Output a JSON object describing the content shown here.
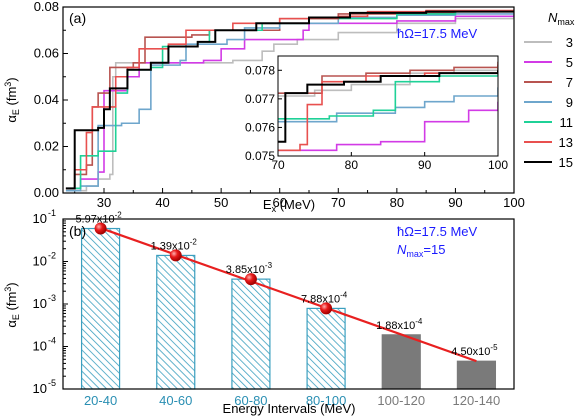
{
  "chart_data": [
    {
      "panel": "(a)",
      "type": "line",
      "xlabel": "E",
      "xlabel_sub": "x",
      "xlabel_unit": " (MeV)",
      "ylabel": "α",
      "ylabel_sub": "E",
      "ylabel_unit": " (fm",
      "ylabel_sup": "3",
      "ylabel_close": ")",
      "xlim": [
        23,
        100
      ],
      "ylim": [
        0,
        0.08
      ],
      "xticks": [
        "30",
        "40",
        "50",
        "60",
        "70",
        "80",
        "90",
        "100"
      ],
      "yticks": [
        "0.00",
        "0.02",
        "0.04",
        "0.06",
        "0.08"
      ],
      "annotation": "ħΩ=17.5 MeV",
      "legend_title": "N",
      "legend_title_sub": "max",
      "series": [
        {
          "name": "3",
          "color": "#bdbdbd",
          "points": [
            [
              23.5,
              0.001
            ],
            [
              27,
              0.003
            ],
            [
              29,
              0.006
            ],
            [
              31,
              0.008
            ],
            [
              31.5,
              0.05
            ],
            [
              32,
              0.056
            ],
            [
              52,
              0.057
            ],
            [
              57,
              0.061
            ],
            [
              59,
              0.064
            ],
            [
              63,
              0.066
            ],
            [
              70,
              0.069
            ],
            [
              80,
              0.073
            ],
            [
              90,
              0.075
            ],
            [
              100,
              0.077
            ]
          ]
        },
        {
          "name": "5",
          "color": "#d23be6",
          "points": [
            [
              23.5,
              0.002
            ],
            [
              26,
              0.006
            ],
            [
              29,
              0.009
            ],
            [
              30,
              0.011
            ],
            [
              30,
              0.044
            ],
            [
              34,
              0.05
            ],
            [
              36,
              0.056
            ],
            [
              47,
              0.057
            ],
            [
              50,
              0.062
            ],
            [
              54,
              0.066
            ],
            [
              64,
              0.07
            ],
            [
              65,
              0.073
            ],
            [
              80,
              0.074
            ],
            [
              90,
              0.076
            ],
            [
              100,
              0.0775
            ]
          ]
        },
        {
          "name": "7",
          "color": "#b85450",
          "points": [
            [
              23.5,
              0.002
            ],
            [
              25,
              0.008
            ],
            [
              27,
              0.012
            ],
            [
              28,
              0.037
            ],
            [
              29,
              0.043
            ],
            [
              31,
              0.054
            ],
            [
              35,
              0.056
            ],
            [
              37,
              0.067
            ],
            [
              45,
              0.068
            ],
            [
              48,
              0.07
            ],
            [
              60,
              0.075
            ],
            [
              70,
              0.077
            ],
            [
              80,
              0.0775
            ],
            [
              90,
              0.078
            ],
            [
              100,
              0.0785
            ]
          ]
        },
        {
          "name": "9",
          "color": "#6ea6cc",
          "points": [
            [
              23.5,
              0.001
            ],
            [
              26,
              0.003
            ],
            [
              29,
              0.029
            ],
            [
              33,
              0.03
            ],
            [
              36,
              0.036
            ],
            [
              38,
              0.055
            ],
            [
              43,
              0.057
            ],
            [
              44,
              0.064
            ],
            [
              51,
              0.066
            ],
            [
              54,
              0.071
            ],
            [
              60,
              0.073
            ],
            [
              70,
              0.0755
            ],
            [
              80,
              0.0765
            ],
            [
              90,
              0.077
            ],
            [
              100,
              0.0775
            ]
          ]
        },
        {
          "name": "11",
          "color": "#1fd197",
          "points": [
            [
              23.5,
              0.002
            ],
            [
              26,
              0.016
            ],
            [
              29,
              0.018
            ],
            [
              32,
              0.043
            ],
            [
              34,
              0.053
            ],
            [
              38,
              0.054
            ],
            [
              40,
              0.063
            ],
            [
              46,
              0.065
            ],
            [
              48,
              0.07
            ],
            [
              57,
              0.073
            ],
            [
              65,
              0.075
            ],
            [
              80,
              0.077
            ],
            [
              90,
              0.078
            ],
            [
              100,
              0.079
            ]
          ]
        },
        {
          "name": "13",
          "color": "#e8504f",
          "points": [
            [
              23.5,
              0.002
            ],
            [
              25,
              0.01
            ],
            [
              27,
              0.026
            ],
            [
              28,
              0.037
            ],
            [
              32,
              0.05
            ],
            [
              34,
              0.054
            ],
            [
              36,
              0.062
            ],
            [
              41,
              0.064
            ],
            [
              44,
              0.07
            ],
            [
              52,
              0.073
            ],
            [
              60,
              0.075
            ],
            [
              70,
              0.076
            ],
            [
              75,
              0.078
            ],
            [
              85,
              0.0785
            ],
            [
              100,
              0.079
            ]
          ]
        },
        {
          "name": "15",
          "color": "#000000",
          "points": [
            [
              23.5,
              0.002
            ],
            [
              25,
              0.027
            ],
            [
              29,
              0.028
            ],
            [
              30,
              0.036
            ],
            [
              31,
              0.045
            ],
            [
              34,
              0.053
            ],
            [
              38,
              0.056
            ],
            [
              41,
              0.063
            ],
            [
              46,
              0.065
            ],
            [
              49,
              0.07
            ],
            [
              56,
              0.073
            ],
            [
              65,
              0.0755
            ],
            [
              72,
              0.0775
            ],
            [
              85,
              0.078
            ],
            [
              100,
              0.0785
            ]
          ]
        }
      ],
      "inset": {
        "xlim": [
          70,
          100
        ],
        "ylim": [
          0.075,
          0.0785
        ],
        "xticks": [
          "70",
          "80",
          "90",
          "100"
        ],
        "yticks": [
          "0.075",
          "0.076",
          "0.077",
          "0.078"
        ],
        "series": [
          {
            "name": "3",
            "color": "#bdbdbd",
            "points": [
              [
                70,
                0.0771
              ],
              [
                75,
                0.0773
              ],
              [
                80,
                0.0775
              ],
              [
                88,
                0.0779
              ],
              [
                94,
                0.078
              ],
              [
                100,
                0.0782
              ]
            ]
          },
          {
            "name": "5",
            "color": "#d23be6",
            "points": [
              [
                70,
                0.0752
              ],
              [
                74,
                0.0752
              ],
              [
                78,
                0.0754
              ],
              [
                84,
                0.0755
              ],
              [
                90,
                0.0762
              ],
              [
                96,
                0.0766
              ],
              [
                100,
                0.0769
              ]
            ]
          },
          {
            "name": "7",
            "color": "#b85450",
            "points": [
              [
                70,
                0.0772
              ],
              [
                76,
                0.0778
              ],
              [
                82,
                0.0779
              ],
              [
                88,
                0.078
              ],
              [
                94,
                0.0781
              ],
              [
                100,
                0.0783
              ]
            ]
          },
          {
            "name": "9",
            "color": "#6ea6cc",
            "points": [
              [
                70,
                0.0762
              ],
              [
                78,
                0.0765
              ],
              [
                86,
                0.0767
              ],
              [
                90,
                0.0769
              ],
              [
                94,
                0.0771
              ],
              [
                100,
                0.0774
              ]
            ]
          },
          {
            "name": "11",
            "color": "#1fd197",
            "points": [
              [
                70,
                0.0763
              ],
              [
                77,
                0.0764
              ],
              [
                83,
                0.0766
              ],
              [
                86,
                0.0776
              ],
              [
                92,
                0.0778
              ],
              [
                100,
                0.0781
              ]
            ]
          },
          {
            "name": "13",
            "color": "#e8504f",
            "points": [
              [
                70,
                0.0752
              ],
              [
                73,
                0.0754
              ],
              [
                74,
                0.0768
              ],
              [
                76,
                0.0776
              ],
              [
                82,
                0.0778
              ],
              [
                90,
                0.0779
              ],
              [
                100,
                0.0782
              ]
            ]
          },
          {
            "name": "15",
            "color": "#000000",
            "points": [
              [
                70,
                0.0755
              ],
              [
                71,
                0.0772
              ],
              [
                74,
                0.0775
              ],
              [
                79,
                0.0776
              ],
              [
                84,
                0.0778
              ],
              [
                92,
                0.0779
              ],
              [
                100,
                0.078
              ]
            ]
          }
        ]
      }
    },
    {
      "panel": "(b)",
      "type": "bar",
      "ylog": true,
      "xlabel": "Energy Intervals (MeV)",
      "ylabel": "α",
      "ylabel_sub": "E",
      "ylabel_unit": " (fm",
      "ylabel_sup": "3",
      "ylabel_close": ")",
      "ylim": [
        1e-05,
        0.1
      ],
      "yticks": [
        {
          "base": "10",
          "exp": "-1"
        },
        {
          "base": "10",
          "exp": "-2"
        },
        {
          "base": "10",
          "exp": "-3"
        },
        {
          "base": "10",
          "exp": "-4"
        },
        {
          "base": "10",
          "exp": "-5"
        }
      ],
      "categories": [
        "20-40",
        "40-60",
        "60-80",
        "80-100",
        "100-120",
        "120-140"
      ],
      "values": [
        0.0597,
        0.0139,
        0.00385,
        0.000788,
        0.000188,
        4.5e-05
      ],
      "value_labels": [
        {
          "m": "5.97x10",
          "e": "-2"
        },
        {
          "m": "1.39x10",
          "e": "-2"
        },
        {
          "m": "3.85x10",
          "e": "-3"
        },
        {
          "m": "7.88x10",
          "e": "-4"
        },
        {
          "m": "1.88x10",
          "e": "-4"
        },
        {
          "m": "4.50x10",
          "e": "-5"
        }
      ],
      "bar_colors": [
        "#3b9fbf",
        "#3b9fbf",
        "#3b9fbf",
        "#3b9fbf",
        "#7a7a7a",
        "#7a7a7a"
      ],
      "category_label_colors": [
        "#2a8fb3",
        "#2a8fb3",
        "#2a8fb3",
        "#2a8fb3",
        "#7a7a7a",
        "#7a7a7a"
      ],
      "hatched": [
        true,
        true,
        true,
        true,
        false,
        false
      ],
      "fit_line_color": "#e82020",
      "marker_color": "#e81a1a",
      "annotation": "ħΩ=17.5 MeV",
      "annotation2": {
        "n": "N",
        "sub": "max",
        "rest": "=15"
      }
    }
  ]
}
